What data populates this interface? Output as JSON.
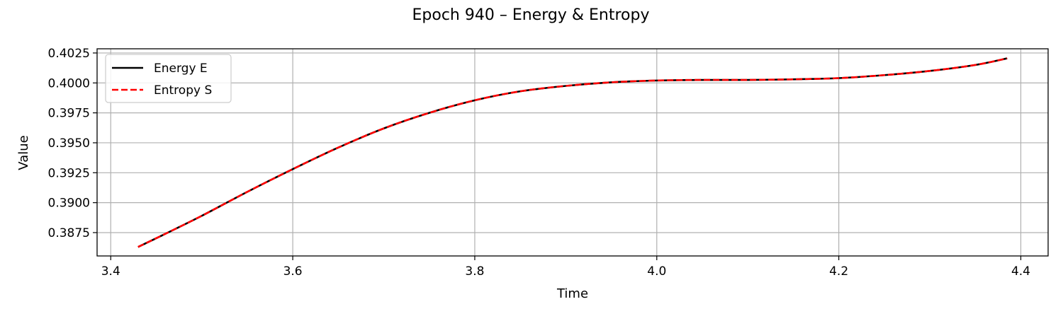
{
  "chart_data": {
    "type": "line",
    "title": "Epoch 940 – Energy & Entropy",
    "xlabel": "Time",
    "ylabel": "Value",
    "xlim": [
      3.385,
      4.43
    ],
    "ylim": [
      0.38555,
      0.40285
    ],
    "xticks": [
      3.4,
      3.6,
      3.8,
      4.0,
      4.2,
      4.4
    ],
    "xtick_labels": [
      "3.4",
      "3.6",
      "3.8",
      "4.0",
      "4.2",
      "4.4"
    ],
    "yticks": [
      0.3875,
      0.39,
      0.3925,
      0.395,
      0.3975,
      0.4,
      0.4025
    ],
    "ytick_labels": [
      "0.3875",
      "0.3900",
      "0.3925",
      "0.3950",
      "0.3975",
      "0.4000",
      "0.4025"
    ],
    "grid": true,
    "legend_position": "top-left",
    "series": [
      {
        "name": "Energy E",
        "color": "#000000",
        "style": "solid",
        "x": [
          3.43,
          3.46,
          3.5,
          3.55,
          3.6,
          3.65,
          3.7,
          3.75,
          3.8,
          3.85,
          3.9,
          3.95,
          4.0,
          4.05,
          4.1,
          4.15,
          4.2,
          4.25,
          4.3,
          4.35,
          4.385
        ],
        "values": [
          0.3863,
          0.3874,
          0.3889,
          0.3909,
          0.3928,
          0.3946,
          0.3962,
          0.3975,
          0.39855,
          0.3993,
          0.39975,
          0.40005,
          0.4002,
          0.40025,
          0.40025,
          0.4003,
          0.4004,
          0.40065,
          0.401,
          0.4015,
          0.40205
        ]
      },
      {
        "name": "Entropy S",
        "color": "#ff0000",
        "style": "dashed",
        "x": [
          3.43,
          3.46,
          3.5,
          3.55,
          3.6,
          3.65,
          3.7,
          3.75,
          3.8,
          3.85,
          3.9,
          3.95,
          4.0,
          4.05,
          4.1,
          4.15,
          4.2,
          4.25,
          4.3,
          4.35,
          4.385
        ],
        "values": [
          0.3863,
          0.3874,
          0.3889,
          0.3909,
          0.3928,
          0.3946,
          0.3962,
          0.3975,
          0.39855,
          0.3993,
          0.39975,
          0.40005,
          0.4002,
          0.40025,
          0.40025,
          0.4003,
          0.4004,
          0.40065,
          0.401,
          0.4015,
          0.40205
        ]
      }
    ]
  }
}
